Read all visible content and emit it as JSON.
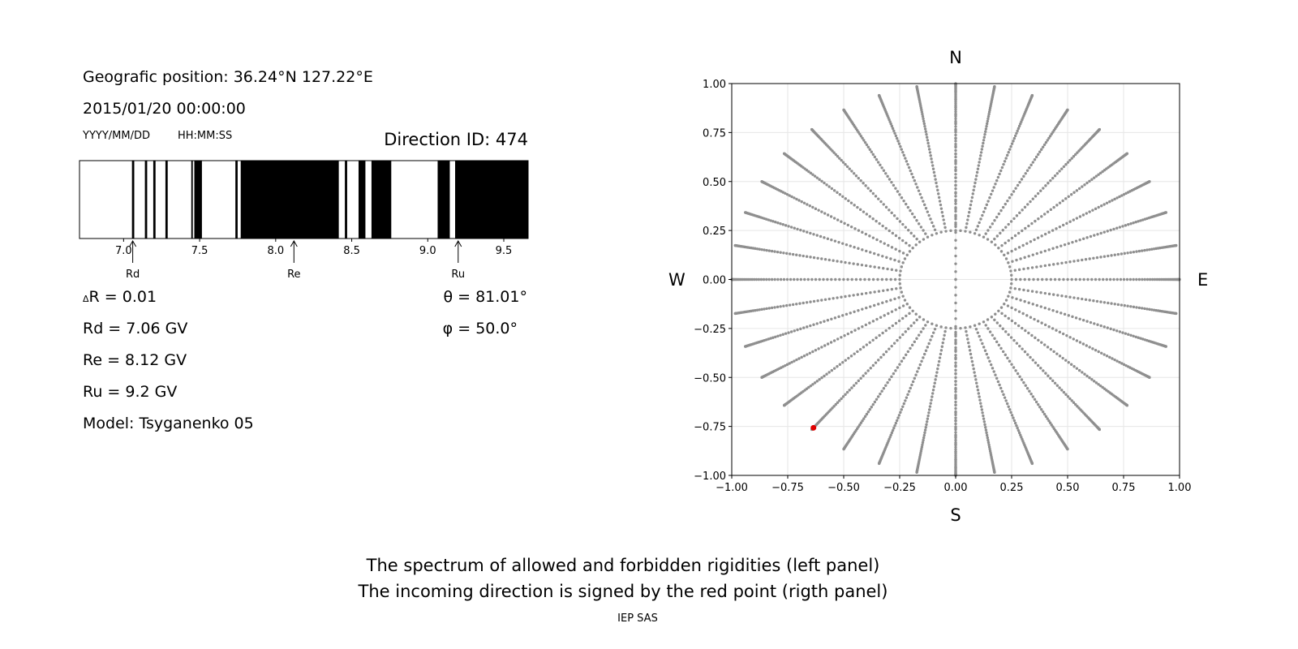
{
  "info": {
    "position": "Geografic position: 36.24°N 127.22°E",
    "datetime": "2015/01/20 00:00:00",
    "date_format": "YYYY/MM/DD",
    "time_format": "HH:MM:SS",
    "direction_id": "Direction ID: 474",
    "delta_r": "R = 0.01",
    "delta_symbol": "Δ",
    "rd": "Rd = 7.06 GV",
    "re": "Re = 8.12 GV",
    "ru": "Ru = 9.2 GV",
    "model": "Model: Tsyganenko 05",
    "theta": "θ = 81.01°",
    "phi": "φ = 50.0°"
  },
  "footer": {
    "line1": "The spectrum of allowed and forbidden rigidities (left panel)",
    "line2": "The incoming direction is signed by the red point (rigth panel)",
    "credit": "IEP SAS"
  },
  "chart_data": [
    {
      "type": "bar",
      "name": "rigidity-spectrum",
      "xlim": [
        6.71,
        9.66
      ],
      "ticks": [
        7.0,
        7.5,
        8.0,
        8.5,
        9.0,
        9.5
      ],
      "tick_labels": [
        "7.0",
        "7.5",
        "8.0",
        "8.5",
        "9.0",
        "9.5"
      ],
      "forbidden_bands": [
        [
          7.055,
          7.07
        ],
        [
          7.14,
          7.155
        ],
        [
          7.195,
          7.21
        ],
        [
          7.275,
          7.29
        ],
        [
          7.445,
          7.455
        ],
        [
          7.465,
          7.515
        ],
        [
          7.735,
          7.75
        ],
        [
          7.77,
          8.415
        ],
        [
          8.455,
          8.47
        ],
        [
          8.545,
          8.59
        ],
        [
          8.63,
          8.76
        ],
        [
          9.065,
          9.145
        ],
        [
          9.18,
          9.66
        ]
      ],
      "colors": {
        "forbidden": "#000000",
        "allowed": "#ffffff"
      },
      "markers": [
        {
          "label": "Rd",
          "value": 7.06
        },
        {
          "label": "Re",
          "value": 8.12
        },
        {
          "label": "Ru",
          "value": 9.2
        }
      ]
    },
    {
      "type": "scatter",
      "name": "direction-map",
      "xlim": [
        -1.0,
        1.0
      ],
      "ylim": [
        -1.0,
        1.0
      ],
      "ticks": [
        -1.0,
        -0.75,
        -0.5,
        -0.25,
        0.0,
        0.25,
        0.5,
        0.75,
        1.0
      ],
      "tick_labels": [
        "−1.00",
        "−0.75",
        "−0.50",
        "−0.25",
        "0.00",
        "0.25",
        "0.50",
        "0.75",
        "1.00"
      ],
      "grid": true,
      "directions": {
        "north": "N",
        "south": "S",
        "west": "W",
        "east": "E"
      },
      "pattern": {
        "azimuths_deg": [
          0,
          10,
          20,
          30,
          40,
          50,
          60,
          70,
          80,
          90,
          100,
          110,
          120,
          130,
          140,
          150,
          160,
          170,
          180,
          190,
          200,
          210,
          220,
          230,
          240,
          250,
          260,
          270,
          280,
          290,
          300,
          310,
          320,
          330,
          340,
          350
        ],
        "inner_circle_radius": 0.25,
        "zenith_step_deg": 5,
        "zenith_max_deg": 89
      },
      "highlight": {
        "x": -0.635,
        "y": -0.757,
        "color": "#e00000"
      },
      "colors": {
        "points": "#8f8f8f"
      }
    }
  ]
}
